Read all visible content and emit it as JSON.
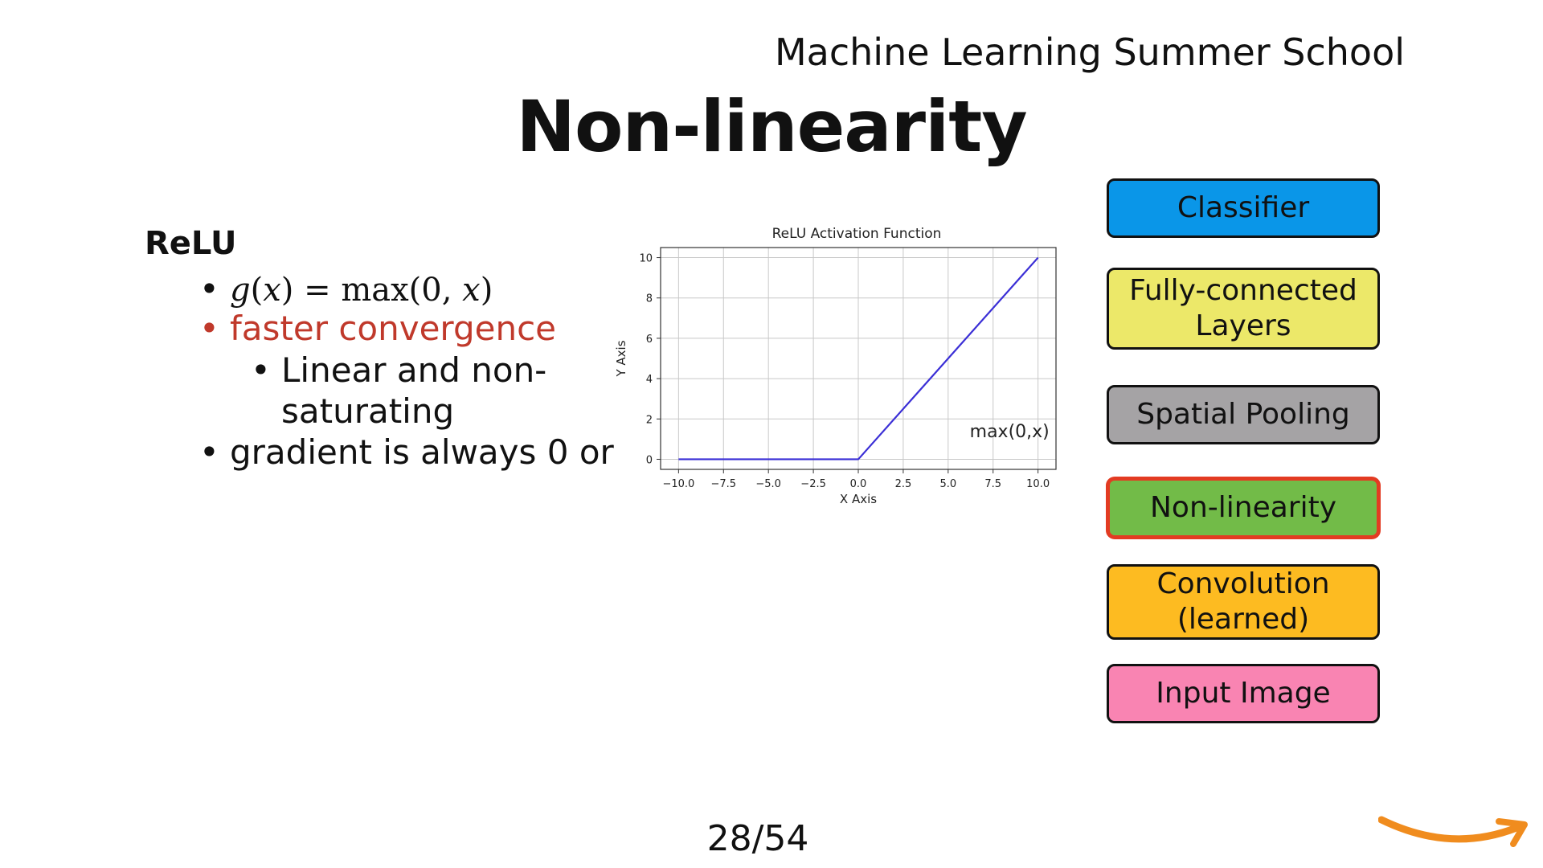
{
  "header": {
    "school": "Machine Learning Summer School"
  },
  "slide": {
    "title": "Non-linearity",
    "page": "28/54"
  },
  "content": {
    "heading": "ReLU",
    "formula": {
      "lhs_fn": "g",
      "lhs_arg": "x",
      "equals": "=",
      "rhs": "max(0, ",
      "rhs_var": "x",
      "close": ")"
    },
    "bullet_red": "faster convergence",
    "sub_bullet_line1": "Linear and non-",
    "sub_bullet_line2": "saturating",
    "bullet_last": "gradient is always 0 or",
    "bullet_symbol": "•"
  },
  "stack": [
    {
      "label_lines": [
        "Classifier"
      ],
      "color": "#0a96e8",
      "active": false
    },
    {
      "label_lines": [
        "Fully-connected",
        "Layers"
      ],
      "color": "#ece869",
      "active": false
    },
    {
      "label_lines": [
        "Spatial Pooling"
      ],
      "color": "#a5a3a5",
      "active": false
    },
    {
      "label_lines": [
        "Non-linearity"
      ],
      "color": "#72bb48",
      "active": true
    },
    {
      "label_lines": [
        "Convolution",
        "(learned)"
      ],
      "color": "#fdbb21",
      "active": false
    },
    {
      "label_lines": [
        "Input Image"
      ],
      "color": "#f984b2",
      "active": false
    }
  ],
  "colors": {
    "red_text": "#c0392b",
    "line": "#3b2fd6",
    "active_border": "#e33b22",
    "logo": "#f08c1e"
  },
  "chart_data": {
    "type": "line",
    "title": "ReLU Activation Function",
    "xlabel": "X Axis",
    "ylabel": "Y Axis",
    "xlim": [
      -11,
      11
    ],
    "ylim": [
      -0.5,
      10.5
    ],
    "x_ticks": [
      -10.0,
      -7.5,
      -5.0,
      -2.5,
      0.0,
      2.5,
      5.0,
      7.5,
      10.0
    ],
    "x_tick_labels": [
      "−10.0",
      "−7.5",
      "−5.0",
      "−2.5",
      "0.0",
      "2.5",
      "5.0",
      "7.5",
      "10.0"
    ],
    "y_ticks": [
      0,
      2,
      4,
      6,
      8,
      10
    ],
    "y_tick_labels": [
      "0",
      "2",
      "4",
      "6",
      "8",
      "10"
    ],
    "grid": true,
    "series": [
      {
        "x": [
          -10,
          -5,
          0,
          5,
          10
        ],
        "y": [
          0,
          0,
          0,
          5,
          10
        ]
      }
    ],
    "annotation": {
      "text": "max(0,x)",
      "x": 6.2,
      "y": 1.1
    }
  }
}
